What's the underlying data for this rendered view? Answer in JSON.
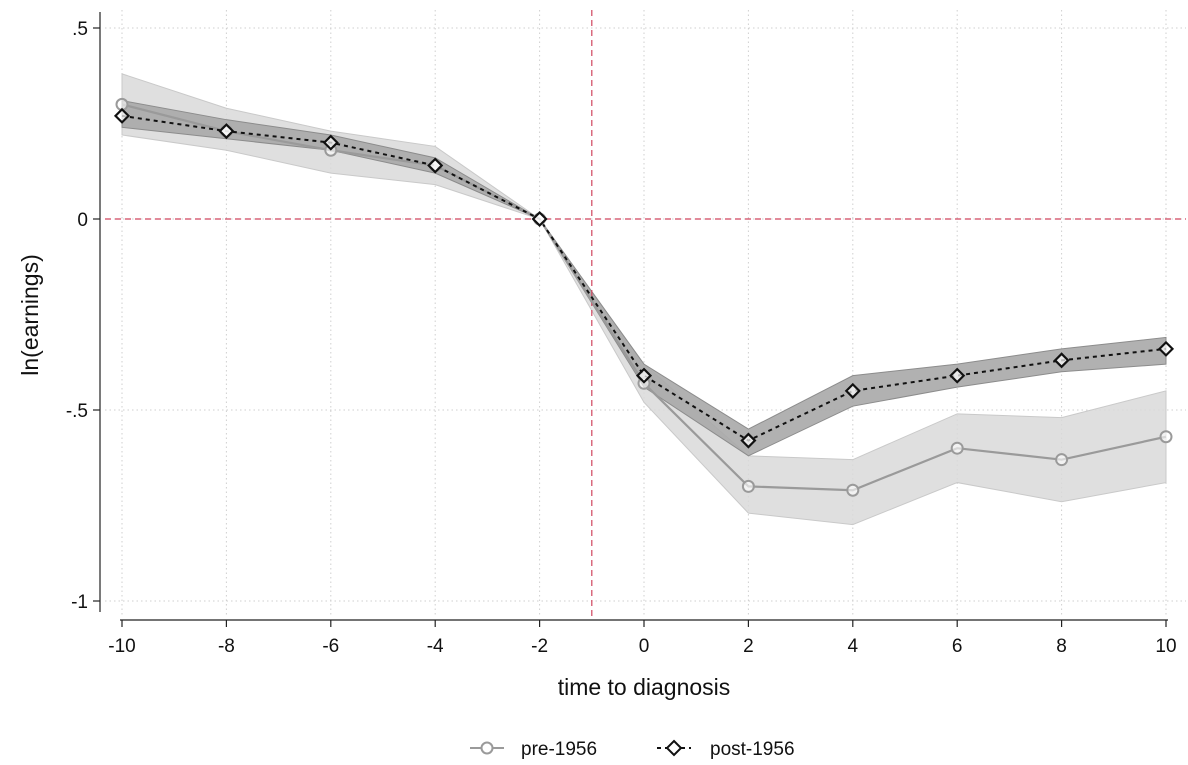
{
  "chart_data": {
    "type": "line",
    "title": "",
    "xlabel": "time to diagnosis",
    "ylabel": "ln(earnings)",
    "xlim": [
      -10,
      10
    ],
    "ylim": [
      -1,
      0.5
    ],
    "xticks": [
      -10,
      -8,
      -6,
      -4,
      -2,
      0,
      2,
      4,
      6,
      8,
      10
    ],
    "xtick_labels": [
      "-10",
      "-8",
      "-6",
      "-4",
      "-2",
      "0",
      "2",
      "4",
      "6",
      "8",
      "10"
    ],
    "yticks": [
      0.5,
      0,
      -0.5,
      -1
    ],
    "ytick_labels": [
      ".5",
      "0",
      "-.5",
      "-1"
    ],
    "grid": true,
    "reference_lines": {
      "x": -1,
      "y": 0
    },
    "legend_position": "bottom",
    "x": [
      -10,
      -8,
      -6,
      -4,
      -2,
      0,
      2,
      4,
      6,
      8,
      10
    ],
    "series": [
      {
        "name": "pre-1956",
        "marker": "circle",
        "line_style": "solid",
        "color": "#9a9a9a",
        "band_color": "#d9d9d9",
        "values": [
          0.3,
          0.23,
          0.18,
          0.14,
          0.0,
          -0.43,
          -0.7,
          -0.71,
          -0.6,
          -0.63,
          -0.57
        ],
        "ci_lower": [
          0.22,
          0.18,
          0.12,
          0.09,
          0.0,
          -0.48,
          -0.77,
          -0.8,
          -0.69,
          -0.74,
          -0.69
        ],
        "ci_upper": [
          0.38,
          0.29,
          0.23,
          0.19,
          0.0,
          -0.38,
          -0.62,
          -0.63,
          -0.51,
          -0.52,
          -0.45
        ]
      },
      {
        "name": "post-1956",
        "marker": "diamond",
        "line_style": "dashed",
        "color": "#111111",
        "band_color": "#a8a8a8",
        "values": [
          0.27,
          0.23,
          0.2,
          0.14,
          0.0,
          -0.41,
          -0.58,
          -0.45,
          -0.41,
          -0.37,
          -0.34
        ],
        "ci_lower": [
          0.24,
          0.21,
          0.18,
          0.12,
          0.0,
          -0.44,
          -0.62,
          -0.49,
          -0.44,
          -0.4,
          -0.38
        ],
        "ci_upper": [
          0.31,
          0.26,
          0.22,
          0.16,
          0.0,
          -0.38,
          -0.55,
          -0.41,
          -0.38,
          -0.34,
          -0.31
        ]
      }
    ]
  }
}
